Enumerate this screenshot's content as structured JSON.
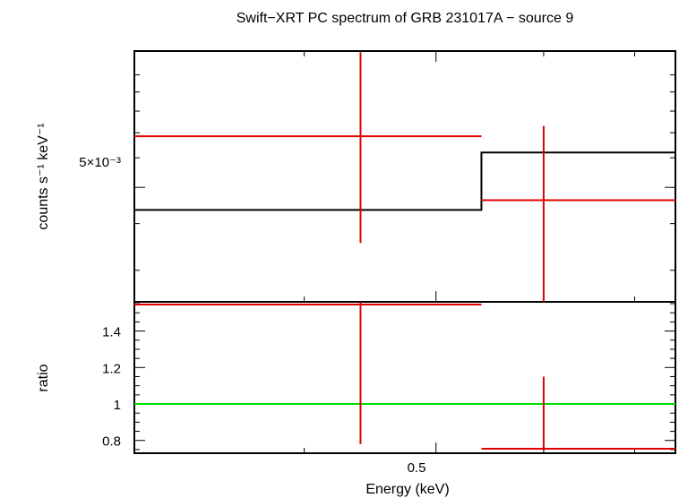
{
  "chart_data": [
    {
      "type": "line",
      "panel": "spectrum",
      "title": "Swift−XRT PC spectrum of GRB 231017A − source 9",
      "ylabel": "counts s⁻¹ keV⁻¹",
      "ytick_label": "5×10⁻³",
      "yscale": "log",
      "series": [
        {
          "color": "#e00000",
          "style": "data-with-errorbars",
          "points": [
            {
              "x": 0.44,
              "xlo": 0.3,
              "xhi": 0.54,
              "y": 0.00685,
              "ylo": 0.00355,
              "yhi": 0.0115
            },
            {
              "x": 0.6,
              "xlo": 0.54,
              "xhi": 0.75,
              "y": 0.00462,
              "ylo": 0.0024,
              "yhi": 0.0073
            }
          ]
        },
        {
          "color": "#000000",
          "style": "model-step",
          "steps": [
            {
              "xlo": 0.3,
              "xhi": 0.54,
              "y": 0.00435
            },
            {
              "xlo": 0.54,
              "xhi": 0.75,
              "y": 0.0062
            }
          ]
        }
      ]
    },
    {
      "type": "line",
      "panel": "ratio",
      "xlabel": "Energy (keV)",
      "ylabel": "ratio",
      "yticks": [
        "0.8",
        "1",
        "1.2",
        "1.4"
      ],
      "xtick_label": "0.5",
      "ylim": [
        0.73,
        1.56
      ],
      "reference_line": {
        "y": 1.0,
        "color": "#00dd00"
      },
      "series": [
        {
          "color": "#e00000",
          "style": "data-with-errorbars",
          "points": [
            {
              "x": 0.44,
              "xlo": 0.3,
              "xhi": 0.54,
              "y": 1.56,
              "ylo": 0.78,
              "yhi": 1.56
            },
            {
              "x": 0.6,
              "xlo": 0.54,
              "xhi": 0.75,
              "y": 0.745,
              "ylo": 0.745,
              "yhi": 1.15
            }
          ]
        }
      ]
    }
  ]
}
